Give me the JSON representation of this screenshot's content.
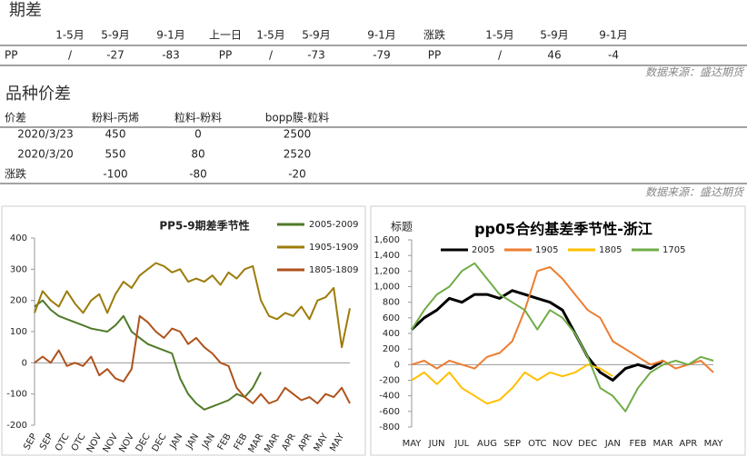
{
  "header_table": {
    "title": "期差",
    "columns": [
      "1-5月",
      "5-9月",
      "9-1月",
      "上一日",
      "1-5月",
      "5-9月",
      "9-1月",
      "涨跌",
      "1-5月",
      "5-9月",
      "9-1月"
    ],
    "row": [
      "PP",
      "/",
      "-27",
      "-83",
      "PP",
      "/",
      "-73",
      "-79",
      "PP",
      "/",
      "46",
      "-4"
    ],
    "source": "数据来源：盛达期货"
  },
  "spread_table": {
    "title": "品种价差",
    "columns": [
      "价差",
      "粉料-丙烯",
      "粒料-粉料",
      "bopp膜-粒料"
    ],
    "rows": [
      [
        "2020/3/23",
        "450",
        "0",
        "2500"
      ],
      [
        "2020/3/20",
        "550",
        "80",
        "2520"
      ],
      [
        "涨跌",
        "-100",
        "-80",
        "-20"
      ]
    ],
    "source": "数据来源：盛达期货"
  },
  "chart_data": [
    {
      "type": "line",
      "title": "PP5-9期差季节性",
      "categories": [
        "SEP",
        null,
        "SEP",
        null,
        "OTC",
        null,
        "OTC",
        null,
        "NOV",
        null,
        "NOV",
        null,
        "NOV",
        null,
        "DEC",
        null,
        "DEC",
        null,
        "JAN",
        null,
        "JAN",
        null,
        "JAN",
        null,
        "FEB",
        null,
        "FEB",
        null,
        "MAR",
        null,
        "MAR",
        null,
        "APR",
        null,
        "APR",
        null,
        "MAY",
        null,
        "MAY",
        null
      ],
      "series": [
        {
          "name": "2005-2009",
          "color": "#4f7a28",
          "values": [
            180,
            200,
            170,
            150,
            140,
            130,
            120,
            110,
            105,
            100,
            120,
            150,
            100,
            80,
            60,
            50,
            40,
            30,
            -50,
            -100,
            -130,
            -150,
            -140,
            -130,
            -120,
            -100,
            -110,
            -80,
            -30,
            null,
            null,
            null,
            null,
            null,
            null,
            null,
            null,
            null,
            null,
            null
          ]
        },
        {
          "name": "1905-1909",
          "color": "#9c7c0a",
          "values": [
            160,
            230,
            200,
            180,
            230,
            190,
            160,
            200,
            220,
            160,
            220,
            260,
            240,
            280,
            300,
            320,
            310,
            290,
            300,
            260,
            270,
            260,
            280,
            250,
            290,
            270,
            300,
            310,
            200,
            150,
            140,
            160,
            150,
            180,
            140,
            200,
            210,
            240,
            50,
            175
          ]
        },
        {
          "name": "1805-1809",
          "color": "#b0521c",
          "values": [
            0,
            20,
            0,
            40,
            -10,
            0,
            -10,
            20,
            -40,
            -20,
            -50,
            -60,
            -20,
            150,
            130,
            100,
            80,
            110,
            100,
            60,
            80,
            50,
            30,
            0,
            -10,
            -80,
            -110,
            -130,
            -100,
            -130,
            -120,
            -80,
            -100,
            -120,
            -110,
            -130,
            -100,
            -110,
            -80,
            -130
          ]
        }
      ],
      "ylim": [
        -200,
        400
      ],
      "yticks": [
        -200,
        -100,
        0,
        100,
        200,
        300,
        400
      ],
      "legend": "upper right"
    },
    {
      "type": "line",
      "title": "pp05合约基差季节性-浙江",
      "ylabel": "标题",
      "categories": [
        "MAY",
        null,
        "JUN",
        null,
        "JUL",
        null,
        "AUG",
        null,
        "SEP",
        null,
        "OTC",
        null,
        "NOV",
        null,
        "DEC",
        null,
        "JAN",
        null,
        "FEB",
        null,
        "MAR",
        null,
        "APR",
        null,
        "MAY"
      ],
      "series": [
        {
          "name": "2005",
          "color": "#000000",
          "values": [
            450,
            600,
            700,
            850,
            800,
            900,
            900,
            850,
            950,
            900,
            850,
            800,
            700,
            400,
            100,
            -100,
            -200,
            -50,
            0,
            -50,
            50,
            null,
            null,
            null,
            null
          ]
        },
        {
          "name": "1905",
          "color": "#ed7d31",
          "values": [
            0,
            50,
            -50,
            50,
            0,
            -50,
            100,
            150,
            300,
            700,
            1200,
            1250,
            1100,
            900,
            700,
            600,
            300,
            200,
            100,
            0,
            50,
            -50,
            0,
            50,
            -100
          ]
        },
        {
          "name": "1805",
          "color": "#ffc000",
          "values": [
            -200,
            -100,
            -250,
            -100,
            -300,
            -400,
            -500,
            -450,
            -300,
            -100,
            -200,
            -100,
            -150,
            -100,
            0,
            -50,
            -150,
            null,
            null,
            null,
            null,
            null,
            null,
            null,
            null
          ]
        },
        {
          "name": "1705",
          "color": "#70ad47",
          "values": [
            450,
            700,
            900,
            1000,
            1200,
            1300,
            1100,
            900,
            800,
            700,
            450,
            700,
            600,
            400,
            100,
            -300,
            -400,
            -600,
            -300,
            -100,
            0,
            50,
            0,
            100,
            50
          ]
        }
      ],
      "ylim": [
        -800,
        1600
      ],
      "yticks": [
        -800,
        -600,
        -400,
        -200,
        0,
        200,
        400,
        600,
        800,
        {
          "value": 1000,
          "label": "1,000"
        },
        {
          "value": 1200,
          "label": "1,200"
        },
        {
          "value": 1400,
          "label": "1,400"
        },
        {
          "value": 1600,
          "label": "1,600"
        }
      ],
      "legend": "upper center"
    }
  ]
}
